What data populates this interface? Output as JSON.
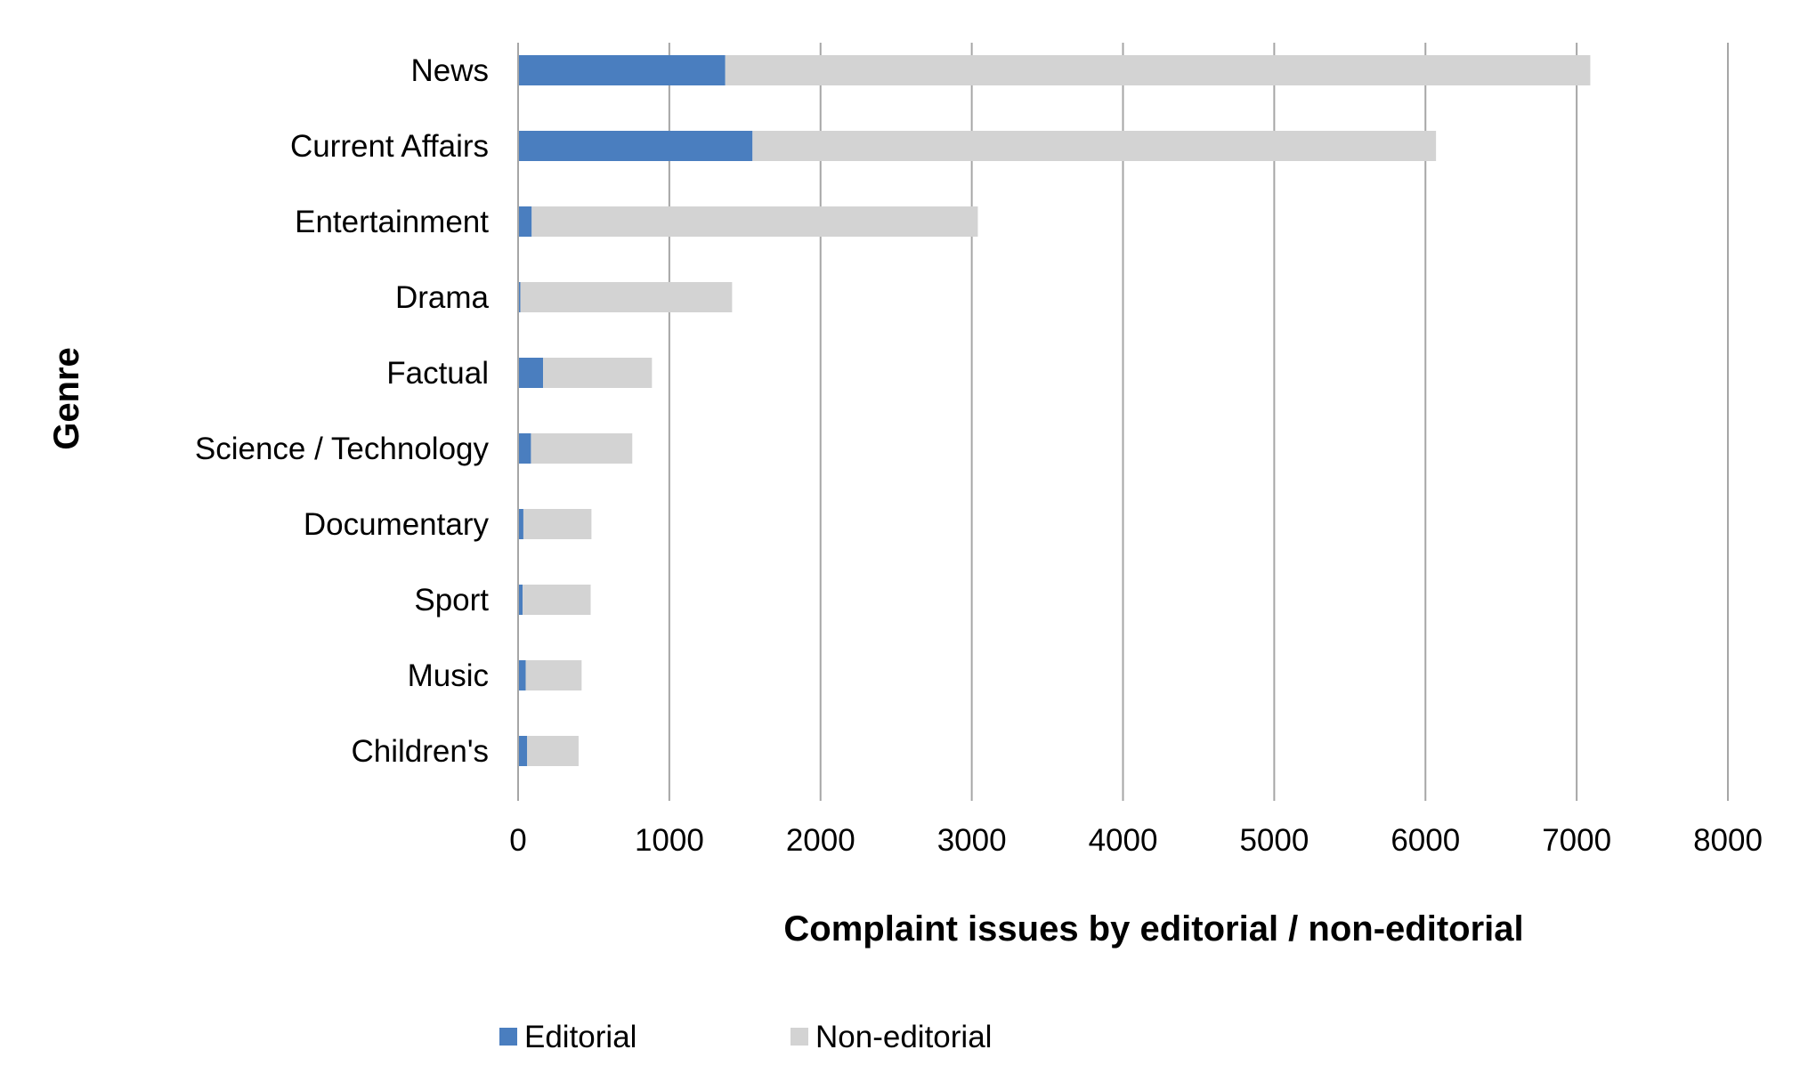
{
  "chart_data": {
    "type": "bar",
    "orientation": "horizontal",
    "stacked": true,
    "categories": [
      "News",
      "Current Affairs",
      "Entertainment",
      "Drama",
      "Factual",
      "Science / Technology",
      "Documentary",
      "Sport",
      "Music",
      "Children's"
    ],
    "series": [
      {
        "name": "Editorial",
        "color": "#4a7ebf",
        "values": [
          1370,
          1550,
          90,
          15,
          165,
          85,
          35,
          30,
          50,
          60
        ]
      },
      {
        "name": "Non-editorial",
        "color": "#d3d3d3",
        "values": [
          5720,
          4520,
          2950,
          1400,
          720,
          670,
          450,
          450,
          370,
          340
        ]
      }
    ],
    "xlabel": "Complaint issues by editorial / non-editorial",
    "ylabel": "Genre",
    "xlim": [
      0,
      8000
    ],
    "xticks": [
      0,
      1000,
      2000,
      3000,
      4000,
      5000,
      6000,
      7000,
      8000
    ],
    "grid": "vertical",
    "legend_position": "bottom"
  }
}
